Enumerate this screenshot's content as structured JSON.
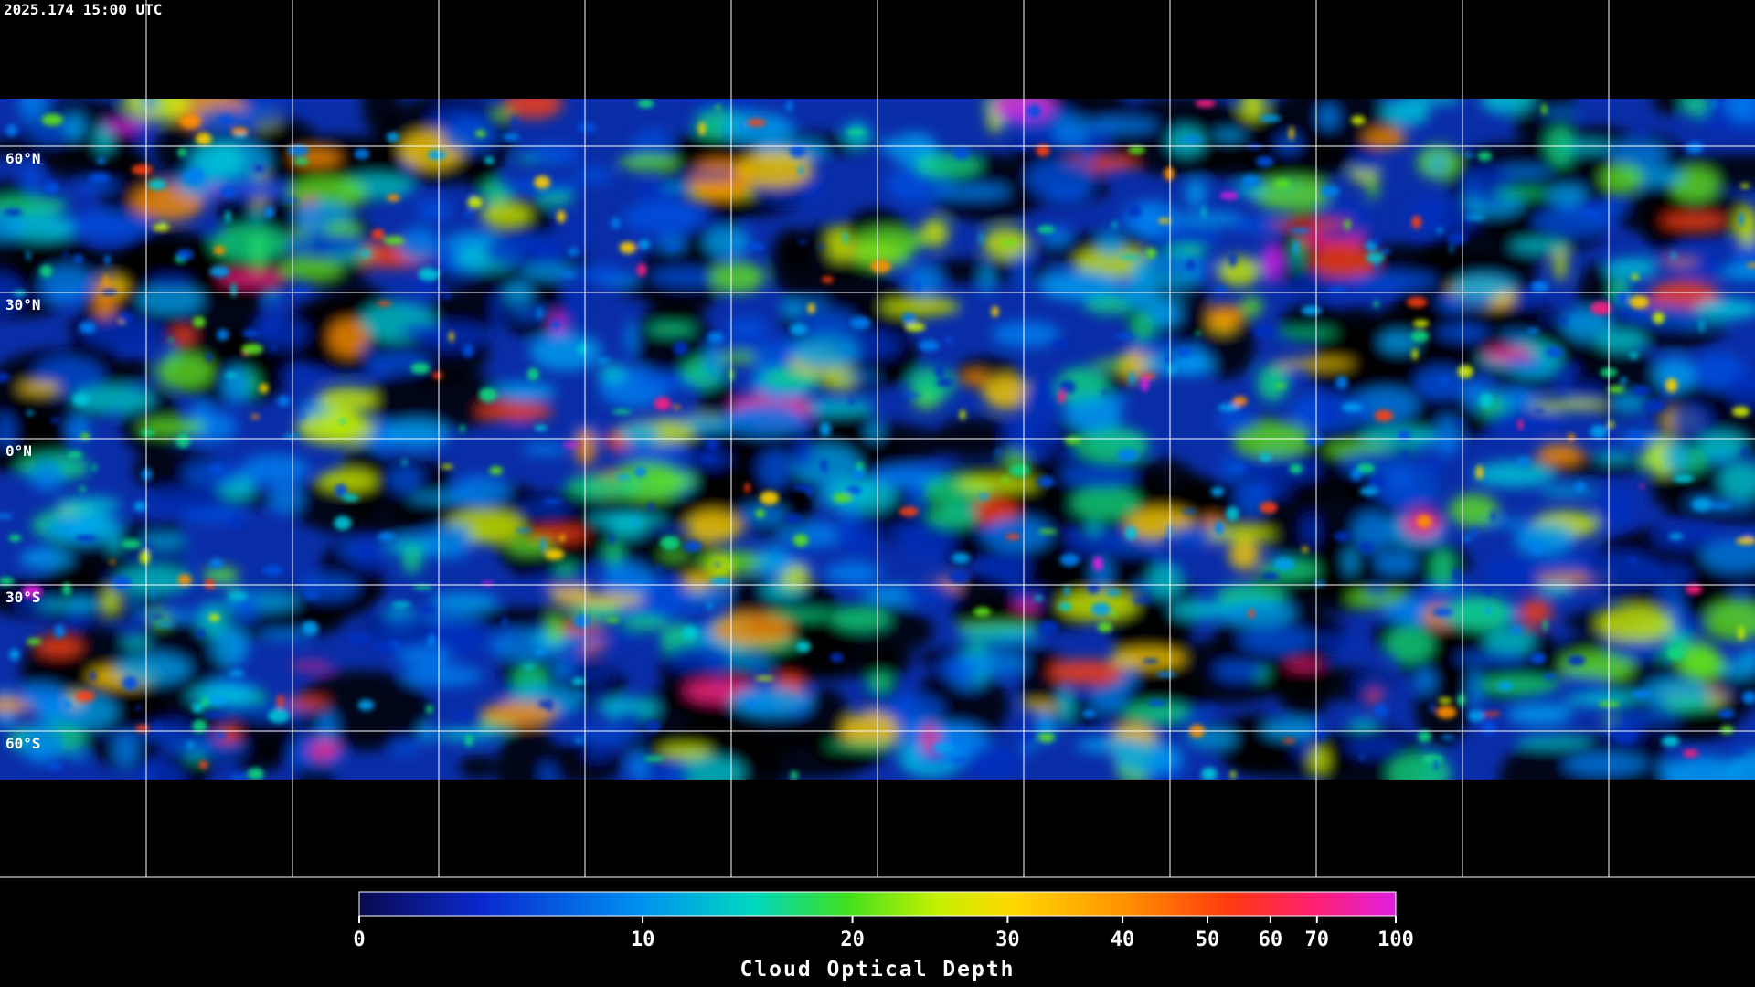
{
  "header": {
    "timestamp": "2025.174 15:00 UTC"
  },
  "map": {
    "lat_labels": [
      "60°N",
      "30°N",
      "0°N",
      "30°S",
      "60°S"
    ]
  },
  "colorbar": {
    "label": "Cloud Optical Depth",
    "range": [
      0,
      100
    ],
    "ticks": [
      0,
      10,
      20,
      30,
      40,
      50,
      60,
      70,
      100
    ]
  }
}
